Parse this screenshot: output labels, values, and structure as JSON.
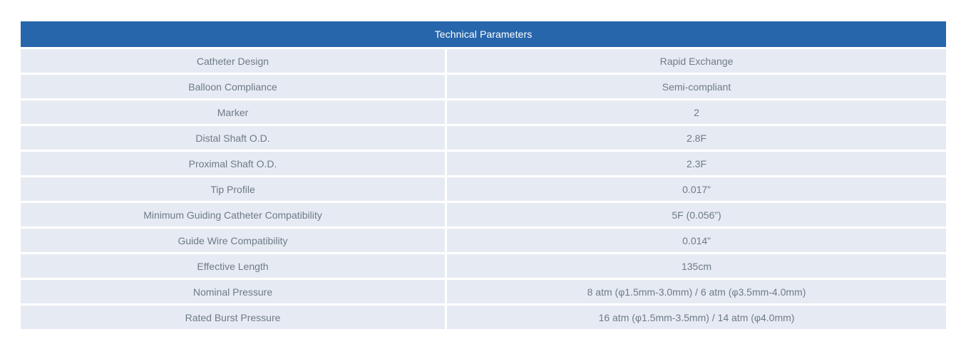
{
  "table": {
    "title": "Technical Parameters",
    "columns": [
      "parameter",
      "value"
    ],
    "rows": [
      {
        "parameter": "Catheter Design",
        "value": "Rapid Exchange"
      },
      {
        "parameter": "Balloon Compliance",
        "value": "Semi-compliant"
      },
      {
        "parameter": "Marker",
        "value": "2"
      },
      {
        "parameter": "Distal Shaft O.D.",
        "value": "2.8F"
      },
      {
        "parameter": "Proximal Shaft O.D.",
        "value": "2.3F"
      },
      {
        "parameter": "Tip Profile",
        "value": "0.017”"
      },
      {
        "parameter": "Minimum Guiding Catheter Compatibility",
        "value": "5F (0.056”)"
      },
      {
        "parameter": "Guide Wire Compatibility",
        "value": "0.014”"
      },
      {
        "parameter": "Effective Length",
        "value": "135cm"
      },
      {
        "parameter": "Nominal Pressure",
        "value": "8 atm (φ1.5mm-3.0mm) / 6 atm (φ3.5mm-4.0mm)"
      },
      {
        "parameter": "Rated Burst Pressure",
        "value": "16 atm (φ1.5mm-3.5mm) / 14 atm (φ4.0mm)"
      }
    ]
  },
  "colors": {
    "header_bg": "#2766ab",
    "header_text": "#ffffff",
    "cell_bg": "#e6ebf3",
    "cell_text": "#6e7a87",
    "page_bg": "#ffffff"
  }
}
